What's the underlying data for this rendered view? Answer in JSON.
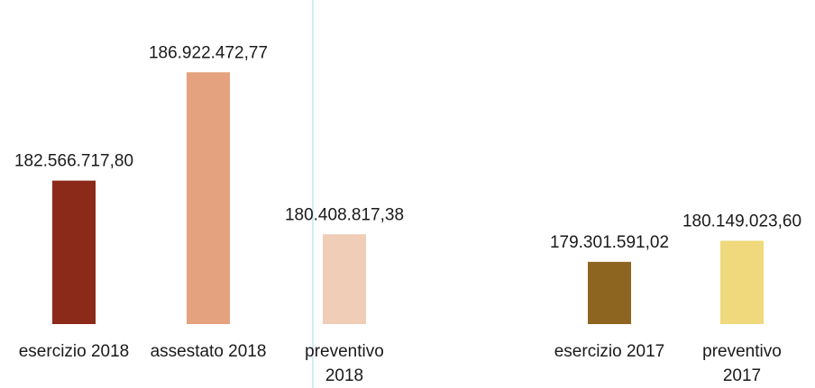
{
  "chart_data": {
    "type": "bar",
    "categories": [
      "esercizio 2018",
      "assestato 2018",
      "preventivo 2018",
      "esercizio 2017",
      "preventivo 2017"
    ],
    "category_lines": [
      [
        "esercizio 2018"
      ],
      [
        "assestato 2018"
      ],
      [
        "preventivo",
        "2018"
      ],
      [
        "esercizio 2017"
      ],
      [
        "preventivo",
        "2017"
      ]
    ],
    "values": [
      182566717.8,
      186922472.77,
      180408817.38,
      179301591.02,
      180149023.6
    ],
    "value_labels": [
      "182.566.717,80",
      "186.922.472,77",
      "180.408.817,38",
      "179.301.591,02",
      "180.149.023,60"
    ],
    "colors": [
      "#8c2a1a",
      "#e4a27e",
      "#efcdb7",
      "#8e6520",
      "#efd97c"
    ],
    "ylim": [
      176800000,
      187800000
    ],
    "grid": false,
    "legend": "none"
  }
}
